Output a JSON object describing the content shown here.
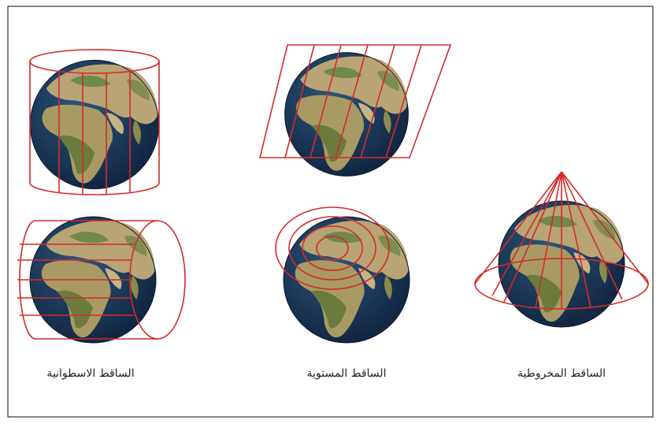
{
  "projections": [
    {
      "label": "الساقط الاسطوانية"
    },
    {
      "label": "الساقط المستوية"
    },
    {
      "label": "الساقط المخروطية"
    }
  ]
}
